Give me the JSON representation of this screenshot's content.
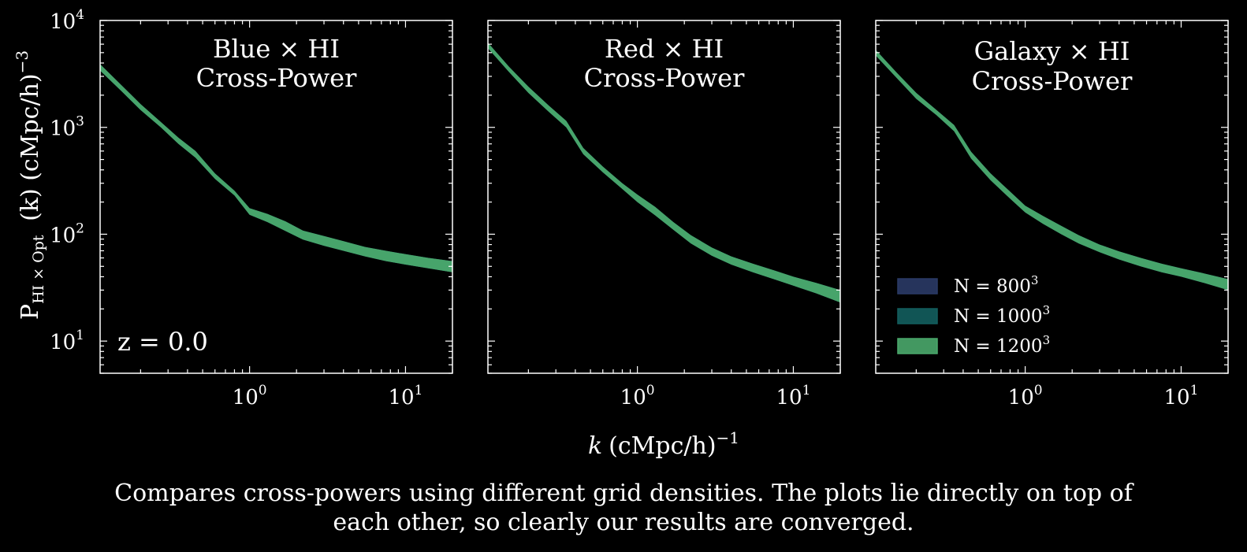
{
  "figure": {
    "ylabel": {
      "main": "P",
      "sub": "HI × Opt",
      "paren": "(k) (cMpc/h)",
      "sup": "−3"
    },
    "xlabel": {
      "k": "k",
      "rest": "(cMpc/h)",
      "sup": "−1"
    },
    "redshift_label": "z = 0.0",
    "caption_line1": "Compares cross-powers using different grid densities. The plots lie directly on top of",
    "caption_line2": "each other, so clearly our results are converged."
  },
  "chart_data": [
    {
      "type": "area",
      "title_line1": "Blue × HI",
      "title_line2": "Cross-Power",
      "xscale": "log",
      "yscale": "log",
      "xlim": [
        0.11,
        20
      ],
      "ylim": [
        5,
        10000
      ],
      "yticks": [
        "10",
        "10",
        "10",
        "10"
      ],
      "ytick_exps": [
        "1",
        "2",
        "3",
        "4"
      ],
      "xticks": [
        "10",
        "10"
      ],
      "xtick_exps": [
        "0",
        "1"
      ],
      "x": [
        0.11,
        0.15,
        0.2,
        0.27,
        0.35,
        0.45,
        0.6,
        0.8,
        1.0,
        1.3,
        1.7,
        2.2,
        3.0,
        4.0,
        5.5,
        7.5,
        10,
        14,
        20
      ],
      "lower": [
        3400,
        2200,
        1450,
        1000,
        700,
        520,
        330,
        230,
        152,
        130,
        107,
        89,
        78,
        70,
        62,
        56,
        52,
        48,
        44
      ],
      "upper": [
        3900,
        2500,
        1650,
        1120,
        800,
        600,
        370,
        255,
        175,
        155,
        132,
        108,
        96,
        86,
        76,
        70,
        65,
        60,
        56
      ],
      "series": [
        {
          "name": "N = 800³",
          "color": "#2a3a66"
        },
        {
          "name": "N = 1000³",
          "color": "#135e5e"
        },
        {
          "name": "N = 1200³",
          "color": "#4aa96c"
        }
      ],
      "legend_position": "none"
    },
    {
      "type": "area",
      "title_line1": "Red × HI",
      "title_line2": "Cross-Power",
      "xscale": "log",
      "yscale": "log",
      "xlim": [
        0.11,
        20
      ],
      "ylim": [
        5,
        10000
      ],
      "xticks": [
        "10",
        "10"
      ],
      "xtick_exps": [
        "0",
        "1"
      ],
      "x": [
        0.11,
        0.15,
        0.2,
        0.27,
        0.35,
        0.45,
        0.6,
        0.8,
        1.0,
        1.3,
        1.7,
        2.2,
        3.0,
        4.0,
        5.5,
        7.5,
        10,
        14,
        20
      ],
      "lower": [
        5500,
        3300,
        2100,
        1400,
        1000,
        560,
        380,
        265,
        200,
        150,
        110,
        82,
        63,
        52,
        44,
        38,
        33,
        28,
        23
      ],
      "upper": [
        6200,
        3700,
        2400,
        1600,
        1150,
        640,
        430,
        300,
        235,
        180,
        130,
        98,
        75,
        62,
        53,
        46,
        40,
        35,
        30
      ],
      "series": [
        {
          "name": "N = 800³",
          "color": "#2a3a66"
        },
        {
          "name": "N = 1000³",
          "color": "#135e5e"
        },
        {
          "name": "N = 1200³",
          "color": "#4aa96c"
        }
      ],
      "legend_position": "none"
    },
    {
      "type": "area",
      "title_line1": "Galaxy × HI",
      "title_line2": "Cross-Power",
      "xscale": "log",
      "yscale": "log",
      "xlim": [
        0.11,
        20
      ],
      "ylim": [
        5,
        10000
      ],
      "xticks": [
        "10",
        "10"
      ],
      "xtick_exps": [
        "0",
        "1"
      ],
      "x": [
        0.11,
        0.15,
        0.2,
        0.27,
        0.35,
        0.45,
        0.6,
        0.8,
        1.0,
        1.3,
        1.7,
        2.2,
        3.0,
        4.0,
        5.5,
        7.5,
        10,
        14,
        20
      ],
      "lower": [
        4700,
        2900,
        1850,
        1300,
        920,
        510,
        320,
        215,
        160,
        125,
        100,
        82,
        68,
        58,
        50,
        44,
        40,
        35,
        30
      ],
      "upper": [
        5300,
        3250,
        2100,
        1450,
        1050,
        590,
        370,
        250,
        185,
        148,
        120,
        98,
        80,
        69,
        60,
        53,
        48,
        43,
        38
      ],
      "series": [
        {
          "name": "N = 800³",
          "color": "#2a3a66"
        },
        {
          "name": "N = 1000³",
          "color": "#135e5e"
        },
        {
          "name": "N = 1200³",
          "color": "#4aa96c"
        }
      ],
      "legend_position": "lower-left",
      "legend": [
        {
          "base": "N = 800",
          "exp": "3",
          "color": "#2a3a66"
        },
        {
          "base": "N = 1000",
          "exp": "3",
          "color": "#135e5e"
        },
        {
          "base": "N = 1200",
          "exp": "3",
          "color": "#4aa96c"
        }
      ]
    }
  ]
}
